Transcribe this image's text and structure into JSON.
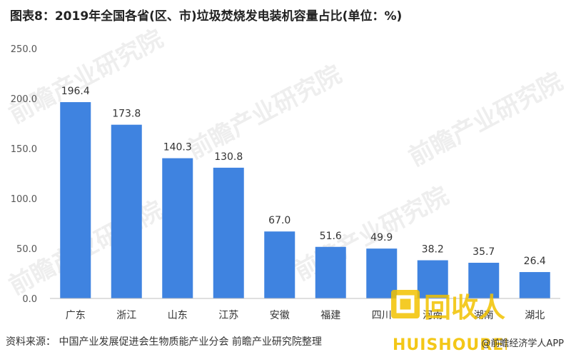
{
  "title": "图表8：2019年全国各省(区、市)垃圾焚烧发电装机容量占比(单位：%)",
  "footer": {
    "source": "资料来源：  中国产业发展促进会生物质能产业分会 前瞻产业研究院整理",
    "account": "@前瞻经济学人APP"
  },
  "watermark": {
    "text": "前瞻产业研究院",
    "logo_text": "回收人",
    "logo_sub": "HUISHOUREN"
  },
  "colors": {
    "bar": "#3f83e0",
    "axis": "#bfbfbf"
  },
  "chart_data": {
    "type": "bar",
    "title": "图表8：2019年全国各省(区、市)垃圾焚烧发电装机容量占比(单位：%)",
    "categories": [
      "广东",
      "浙江",
      "山东",
      "江苏",
      "安徽",
      "福建",
      "四川",
      "河南",
      "湖南",
      "湖北"
    ],
    "values": [
      196.4,
      173.8,
      140.3,
      130.8,
      67.0,
      51.6,
      49.9,
      38.2,
      35.7,
      26.4
    ],
    "value_labels": [
      "196.4",
      "173.8",
      "140.3",
      "130.8",
      "67.0",
      "51.6",
      "49.9",
      "38.2",
      "35.7",
      "26.4"
    ],
    "yticks": [
      "0.0",
      "50.0",
      "100.0",
      "150.0",
      "200.0",
      "250.0"
    ],
    "ylim": [
      0,
      250
    ],
    "xlabel": "",
    "ylabel": "",
    "grid": false,
    "legend": "none"
  }
}
